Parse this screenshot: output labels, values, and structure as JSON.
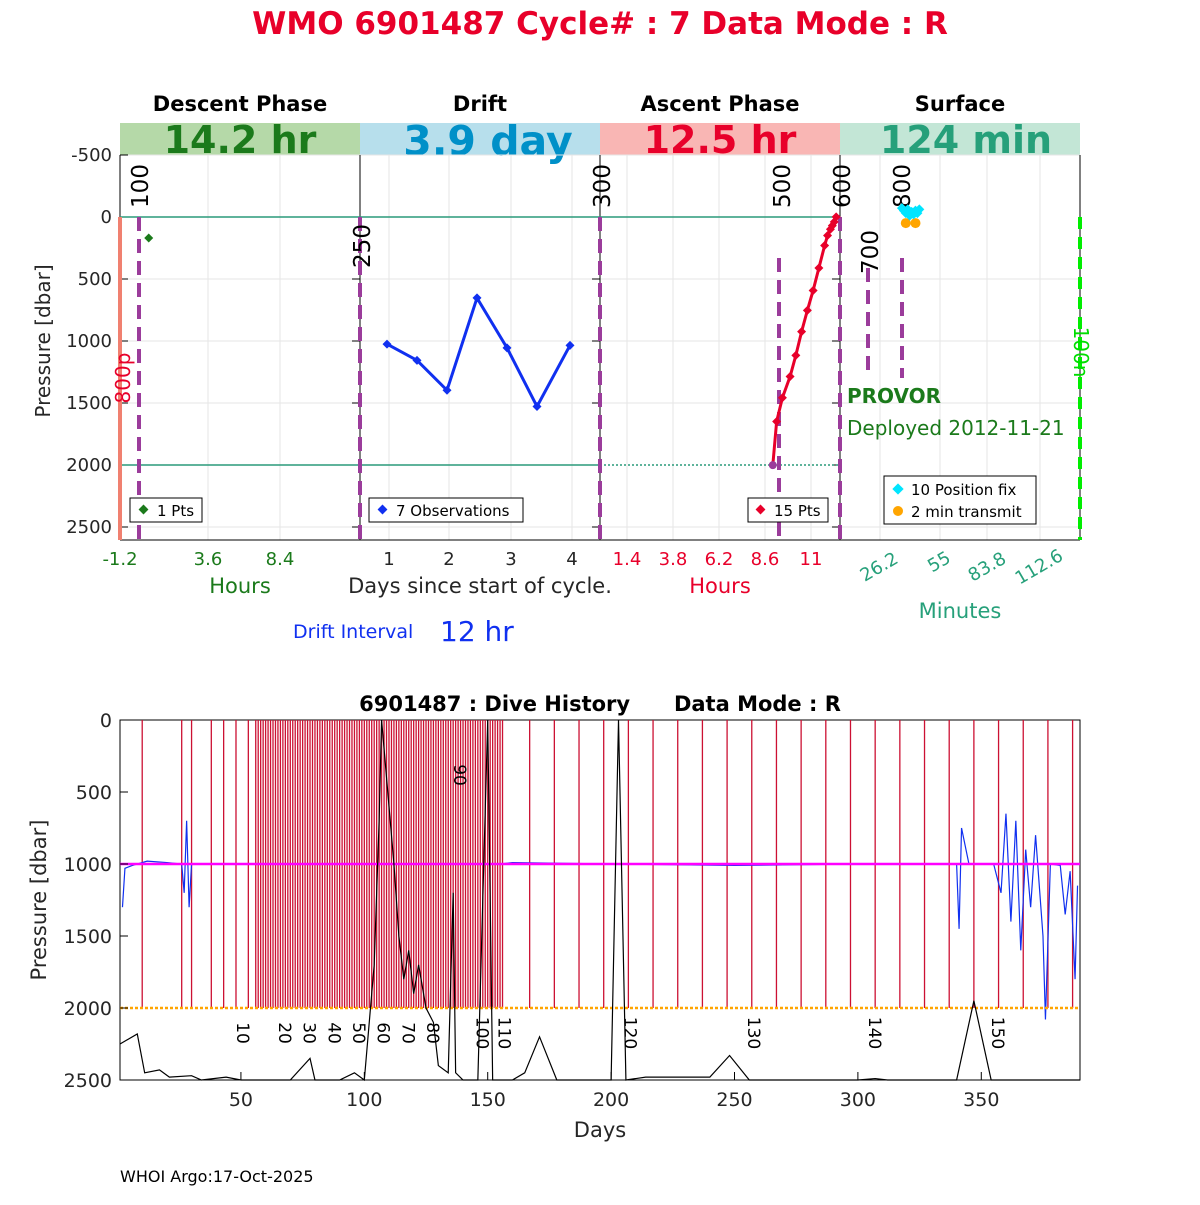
{
  "main_title": "WMO 6901487   Cycle# : 7   Data Mode : R",
  "footer": "WHOI Argo:17-Oct-2025",
  "colors": {
    "title_red": "#e8002a",
    "descent_green": "#1b7a1b",
    "drift_blue": "#1030f0",
    "drift_banner_text": "#0090c8",
    "ascent_red": "#e8002a",
    "surface_teal": "#26a07a",
    "marker_purple": "#9b3c9b",
    "ref_line_teal": "#2a9a7a",
    "history_red": "#cc1133",
    "magenta": "#ff00ff",
    "orange": "#ffa500",
    "cyan": "#00e5ff",
    "bright_green": "#00ee00"
  },
  "top_panel": {
    "ylabel": "Pressure [dbar]",
    "yticks": [
      "-500",
      "0",
      "500",
      "1000",
      "1500",
      "2000",
      "2500"
    ],
    "yrange": [
      -750,
      2600
    ],
    "park_label": "800p",
    "drift_interval_label": "Drift Interval",
    "drift_interval_value": "12 hr",
    "phases": {
      "descent": {
        "title": "Descent Phase",
        "duration": "14.2 hr",
        "axis_label": "Hours",
        "ticks": [
          "-1.2",
          "3.6",
          "8.4"
        ],
        "markers": [
          "100",
          "250"
        ],
        "legend": "1 Pts"
      },
      "drift": {
        "title": "Drift",
        "duration": "3.9 day",
        "axis_label": "Days since start of cycle.",
        "ticks": [
          "1",
          "2",
          "3",
          "4"
        ],
        "markers": [
          "300"
        ],
        "legend": "7 Observations"
      },
      "ascent": {
        "title": "Ascent Phase",
        "duration": "12.5 hr",
        "axis_label": "Hours",
        "ticks": [
          "1.4",
          "3.8",
          "6.2",
          "8.6",
          "11"
        ],
        "markers": [
          "500",
          "600"
        ],
        "legend": "15 Pts"
      },
      "surface": {
        "title": "Surface",
        "duration": "124 min",
        "axis_label": "Minutes",
        "ticks": [
          "26.2",
          "55",
          "83.8",
          "112.6"
        ],
        "markers": [
          "700",
          "800",
          "100n"
        ],
        "legend_fix": "10 Position fix",
        "legend_transmit": "2 min transmit",
        "float_type": "PROVOR",
        "deployed": "Deployed 2012-11-21"
      }
    }
  },
  "chart_data": [
    {
      "type": "scatter",
      "panel": "descent",
      "x_unit": "hours",
      "xlim": [
        -1.2,
        13.0
      ],
      "series": [
        {
          "values": [
            {
              "x": 0.5,
              "y": 180
            }
          ]
        }
      ]
    },
    {
      "type": "line",
      "panel": "drift",
      "x_unit": "days since start of cycle",
      "xlim": [
        0.6,
        4.6
      ],
      "series": [
        {
          "values": [
            {
              "x": 1.05,
              "y": 1030
            },
            {
              "x": 1.55,
              "y": 1160
            },
            {
              "x": 2.05,
              "y": 1400
            },
            {
              "x": 2.55,
              "y": 660
            },
            {
              "x": 3.05,
              "y": 1060
            },
            {
              "x": 3.55,
              "y": 1530
            },
            {
              "x": 4.1,
              "y": 1040
            }
          ]
        }
      ]
    },
    {
      "type": "line",
      "panel": "ascent",
      "x_unit": "hours",
      "xlim": [
        0.0,
        12.5
      ],
      "series": [
        {
          "values": [
            {
              "x": 9.0,
              "y": 2000
            },
            {
              "x": 9.2,
              "y": 1650
            },
            {
              "x": 9.5,
              "y": 1460
            },
            {
              "x": 9.9,
              "y": 1290
            },
            {
              "x": 10.2,
              "y": 1120
            },
            {
              "x": 10.5,
              "y": 930
            },
            {
              "x": 10.8,
              "y": 760
            },
            {
              "x": 11.1,
              "y": 600
            },
            {
              "x": 11.4,
              "y": 420
            },
            {
              "x": 11.7,
              "y": 240
            },
            {
              "x": 11.85,
              "y": 160
            },
            {
              "x": 12.0,
              "y": 110
            },
            {
              "x": 12.1,
              "y": 80
            },
            {
              "x": 12.2,
              "y": 50
            },
            {
              "x": 12.3,
              "y": 10
            }
          ]
        }
      ]
    },
    {
      "type": "scatter",
      "panel": "surface",
      "x_unit": "minutes",
      "xlim": [
        0,
        124
      ],
      "series": [
        {
          "values": [
            {
              "x": 32,
              "y": -60
            },
            {
              "x": 33,
              "y": -40
            },
            {
              "x": 34,
              "y": -20
            },
            {
              "x": 35,
              "y": -50
            },
            {
              "x": 36,
              "y": 0
            },
            {
              "x": 37,
              "y": -30
            },
            {
              "x": 38,
              "y": -10
            },
            {
              "x": 39,
              "y": -40
            },
            {
              "x": 40,
              "y": -20
            },
            {
              "x": 41,
              "y": -50
            }
          ]
        },
        {
          "values": [
            {
              "x": 34,
              "y": 60
            },
            {
              "x": 39,
              "y": 60
            }
          ]
        }
      ]
    },
    {
      "type": "line",
      "title": "6901487 : Dive History      Data Mode : R",
      "xlabel": "Days",
      "ylabel": "Pressure [dbar]",
      "xlim": [
        1,
        390
      ],
      "ylim": [
        0,
        2500
      ],
      "xticks": [
        "50",
        "100",
        "150",
        "200",
        "250",
        "300",
        "350"
      ],
      "yticks": [
        "0",
        "500",
        "1000",
        "1500",
        "2000",
        "2500"
      ],
      "profile_days": [
        10,
        26,
        30,
        38,
        43,
        48,
        53,
        56,
        57,
        58,
        59,
        60,
        61,
        62,
        63,
        64,
        65,
        66,
        67,
        68,
        69,
        70,
        71,
        72,
        73,
        74,
        75,
        76,
        77,
        78,
        79,
        80,
        81,
        82,
        83,
        84,
        85,
        86,
        87,
        88,
        89,
        90,
        91,
        92,
        93,
        94,
        95,
        96,
        97,
        98,
        99,
        100,
        101,
        102,
        103,
        104,
        105,
        106,
        107,
        108,
        109,
        110,
        111,
        112,
        113,
        114,
        115,
        116,
        117,
        118,
        119,
        120,
        121,
        122,
        123,
        124,
        125,
        126,
        127,
        128,
        129,
        130,
        131,
        132,
        133,
        134,
        135,
        136,
        137,
        138,
        139,
        140,
        141,
        142,
        143,
        144,
        145,
        146,
        147,
        148,
        149,
        150,
        151,
        152,
        153,
        154,
        155,
        156,
        167,
        177,
        187,
        197,
        207,
        217,
        227,
        237,
        247,
        257,
        267,
        277,
        287,
        297,
        307,
        317,
        327,
        337,
        347,
        357,
        367,
        377,
        387
      ],
      "cycle_labels": [
        {
          "day": 46,
          "label": "10"
        },
        {
          "day": 63,
          "label": "20"
        },
        {
          "day": 73,
          "label": "30"
        },
        {
          "day": 83,
          "label": "40"
        },
        {
          "day": 93,
          "label": "50"
        },
        {
          "day": 103,
          "label": "60"
        },
        {
          "day": 113,
          "label": "70"
        },
        {
          "day": 123,
          "label": "80"
        },
        {
          "day": 134,
          "label": "90"
        },
        {
          "day": 143,
          "label": "100"
        },
        {
          "day": 152,
          "label": "110"
        },
        {
          "day": 203,
          "label": "120"
        },
        {
          "day": 253,
          "label": "130"
        },
        {
          "day": 302,
          "label": "140"
        },
        {
          "day": 352,
          "label": "150"
        }
      ],
      "series": [
        {
          "values": [
            {
              "x": 2,
              "y": 1300
            },
            {
              "x": 3,
              "y": 1030
            },
            {
              "x": 6,
              "y": 1010
            },
            {
              "x": 12,
              "y": 980
            },
            {
              "x": 20,
              "y": 990
            },
            {
              "x": 26,
              "y": 1000
            },
            {
              "x": 27,
              "y": 1200
            },
            {
              "x": 28,
              "y": 700
            },
            {
              "x": 29,
              "y": 1300
            },
            {
              "x": 30,
              "y": 1000
            },
            {
              "x": 60,
              "y": 1000
            },
            {
              "x": 100,
              "y": 1000
            },
            {
              "x": 155,
              "y": 1000
            },
            {
              "x": 160,
              "y": 990
            },
            {
              "x": 200,
              "y": 1000
            },
            {
              "x": 250,
              "y": 1010
            },
            {
              "x": 300,
              "y": 1000
            },
            {
              "x": 340,
              "y": 1000
            },
            {
              "x": 341,
              "y": 1450
            },
            {
              "x": 342,
              "y": 750
            },
            {
              "x": 345,
              "y": 1000
            },
            {
              "x": 355,
              "y": 1000
            },
            {
              "x": 358,
              "y": 1200
            },
            {
              "x": 360,
              "y": 650
            },
            {
              "x": 362,
              "y": 1400
            },
            {
              "x": 364,
              "y": 700
            },
            {
              "x": 366,
              "y": 1600
            },
            {
              "x": 368,
              "y": 900
            },
            {
              "x": 370,
              "y": 1300
            },
            {
              "x": 372,
              "y": 800
            },
            {
              "x": 375,
              "y": 1500
            },
            {
              "x": 376,
              "y": 2080
            },
            {
              "x": 378,
              "y": 1000
            },
            {
              "x": 382,
              "y": 1010
            },
            {
              "x": 384,
              "y": 1350
            },
            {
              "x": 386,
              "y": 1050
            },
            {
              "x": 388,
              "y": 1800
            },
            {
              "x": 389,
              "y": 1150
            }
          ]
        },
        {
          "values": [
            {
              "x": 1,
              "y": 1000
            },
            {
              "x": 390,
              "y": 1000
            }
          ]
        },
        {
          "values": [
            {
              "x": 1,
              "y": 2000
            },
            {
              "x": 390,
              "y": 2000
            }
          ]
        },
        {
          "values": [
            {
              "x": 1,
              "y": 2250
            },
            {
              "x": 8,
              "y": 2180
            },
            {
              "x": 11,
              "y": 2450
            },
            {
              "x": 17,
              "y": 2430
            },
            {
              "x": 21,
              "y": 2480
            },
            {
              "x": 30,
              "y": 2470
            },
            {
              "x": 34,
              "y": 2500
            },
            {
              "x": 44,
              "y": 2480
            },
            {
              "x": 50,
              "y": 2500
            },
            {
              "x": 70,
              "y": 2500
            },
            {
              "x": 78,
              "y": 2350
            },
            {
              "x": 80,
              "y": 2500
            },
            {
              "x": 90,
              "y": 2500
            },
            {
              "x": 96,
              "y": 2450
            },
            {
              "x": 100,
              "y": 2500
            },
            {
              "x": 104,
              "y": 1700
            },
            {
              "x": 106,
              "y": 700
            },
            {
              "x": 107,
              "y": 0
            },
            {
              "x": 109,
              "y": 400
            },
            {
              "x": 112,
              "y": 1000
            },
            {
              "x": 114,
              "y": 1500
            },
            {
              "x": 116,
              "y": 1800
            },
            {
              "x": 118,
              "y": 1600
            },
            {
              "x": 120,
              "y": 1900
            },
            {
              "x": 122,
              "y": 1700
            },
            {
              "x": 125,
              "y": 2000
            },
            {
              "x": 128,
              "y": 2100
            },
            {
              "x": 130,
              "y": 2400
            },
            {
              "x": 134,
              "y": 2450
            },
            {
              "x": 136,
              "y": 1200
            },
            {
              "x": 137,
              "y": 2450
            },
            {
              "x": 140,
              "y": 2500
            },
            {
              "x": 146,
              "y": 2500
            },
            {
              "x": 150,
              "y": 0
            },
            {
              "x": 152,
              "y": 2500
            },
            {
              "x": 160,
              "y": 2500
            },
            {
              "x": 165,
              "y": 2450
            },
            {
              "x": 171,
              "y": 2200
            },
            {
              "x": 178,
              "y": 2500
            },
            {
              "x": 200,
              "y": 2500
            },
            {
              "x": 203,
              "y": 0
            },
            {
              "x": 206,
              "y": 2500
            },
            {
              "x": 214,
              "y": 2480
            },
            {
              "x": 240,
              "y": 2480
            },
            {
              "x": 248,
              "y": 2330
            },
            {
              "x": 256,
              "y": 2500
            },
            {
              "x": 300,
              "y": 2500
            },
            {
              "x": 307,
              "y": 2490
            },
            {
              "x": 312,
              "y": 2500
            },
            {
              "x": 340,
              "y": 2500
            },
            {
              "x": 347,
              "y": 1950
            },
            {
              "x": 354,
              "y": 2500
            },
            {
              "x": 390,
              "y": 2500
            }
          ]
        }
      ]
    }
  ]
}
